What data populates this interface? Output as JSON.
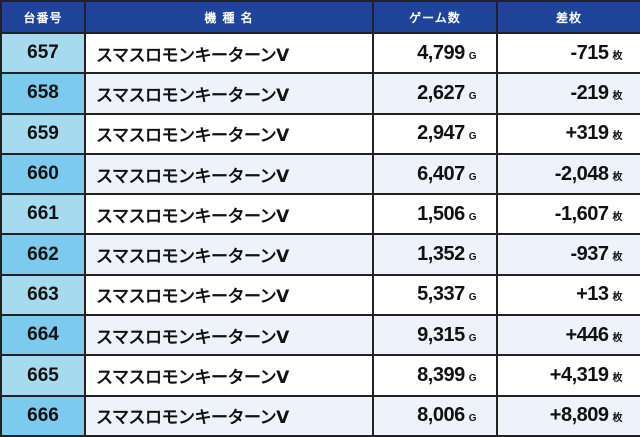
{
  "header": {
    "machine_no": "台番号",
    "model": "機 種 名",
    "games": "ゲーム数",
    "diff": "差枚"
  },
  "units": {
    "games": "G",
    "diff": "枚"
  },
  "colors": {
    "header_bg": "#1e4599",
    "num_col_light": "#a6daee",
    "num_col_dark": "#7ccaed",
    "row_alt": "#eef2fa"
  },
  "rows": [
    {
      "no": "657",
      "model": "スマスロモンキーターンV",
      "games": "4,799",
      "diff": "-715"
    },
    {
      "no": "658",
      "model": "スマスロモンキーターンV",
      "games": "2,627",
      "diff": "-219"
    },
    {
      "no": "659",
      "model": "スマスロモンキーターンV",
      "games": "2,947",
      "diff": "+319"
    },
    {
      "no": "660",
      "model": "スマスロモンキーターンV",
      "games": "6,407",
      "diff": "-2,048"
    },
    {
      "no": "661",
      "model": "スマスロモンキーターンV",
      "games": "1,506",
      "diff": "-1,607"
    },
    {
      "no": "662",
      "model": "スマスロモンキーターンV",
      "games": "1,352",
      "diff": "-937"
    },
    {
      "no": "663",
      "model": "スマスロモンキーターンV",
      "games": "5,337",
      "diff": "+13"
    },
    {
      "no": "664",
      "model": "スマスロモンキーターンV",
      "games": "9,315",
      "diff": "+446"
    },
    {
      "no": "665",
      "model": "スマスロモンキーターンV",
      "games": "8,399",
      "diff": "+4,319"
    },
    {
      "no": "666",
      "model": "スマスロモンキーターンV",
      "games": "8,006",
      "diff": "+8,809"
    }
  ]
}
